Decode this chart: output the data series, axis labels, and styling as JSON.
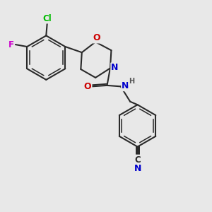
{
  "background_color": "#e8e8e8",
  "bond_color": "#2a2a2a",
  "bond_width": 1.5,
  "atom_colors": {
    "C": "#2a2a2a",
    "N": "#0000cc",
    "O": "#cc0000",
    "Cl": "#00bb00",
    "F": "#cc00cc",
    "H": "#555555"
  },
  "font_size_atoms": 8.5,
  "font_size_h": 7.0
}
